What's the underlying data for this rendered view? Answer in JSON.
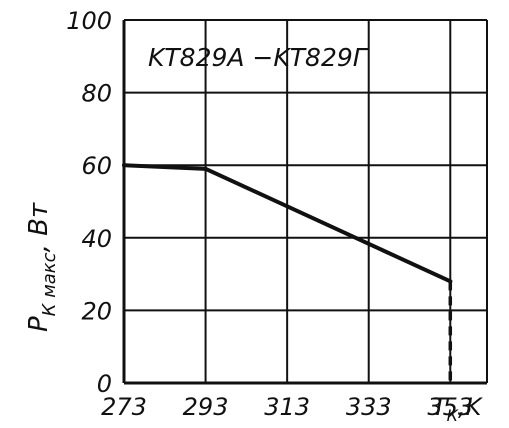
{
  "chart_data": {
    "type": "line",
    "title": "KT829A −KT829Г",
    "ylabel_main": "P",
    "ylabel_sub": "К макс",
    "ylabel_unit": ", Вт",
    "xlabel_main": "T",
    "xlabel_sub": "К",
    "xlabel_unit": ",K",
    "x_ticks": [
      "273",
      "293",
      "313",
      "333",
      "353"
    ],
    "y_ticks": [
      "0",
      "20",
      "40",
      "60",
      "80",
      "100"
    ],
    "xlim": [
      273,
      362
    ],
    "ylim": [
      0,
      100
    ],
    "grid": true,
    "series": [
      {
        "values": [
          [
            273,
            60
          ],
          [
            293,
            59
          ],
          [
            353,
            28
          ]
        ]
      }
    ],
    "cutoff": {
      "x": 353,
      "y_from": 28,
      "y_to": 0
    }
  }
}
